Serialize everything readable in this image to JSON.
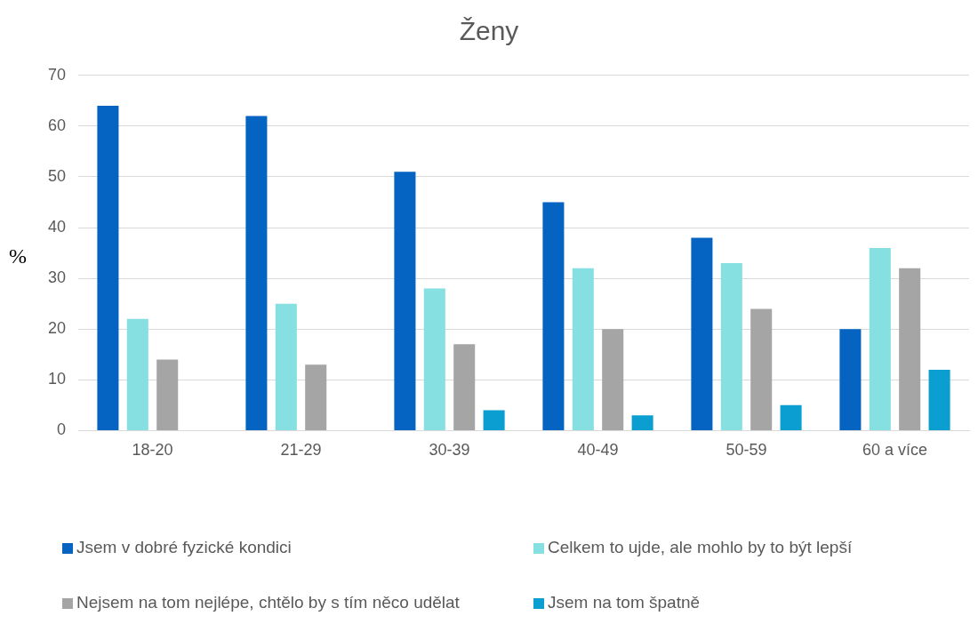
{
  "chart_data": {
    "type": "bar",
    "title": "Ženy",
    "ylabel": "%",
    "categories": [
      "18-20",
      "21-29",
      "30-39",
      "40-49",
      "50-59",
      "60 a více"
    ],
    "series": [
      {
        "name": "Jsem v dobré fyzické kondici",
        "color": "#0563c1",
        "values": [
          64,
          62,
          51,
          45,
          38,
          20
        ]
      },
      {
        "name": "Celkem to ujde, ale mohlo by to být lepší",
        "color": "#86dfe0",
        "values": [
          22,
          25,
          28,
          32,
          33,
          36
        ]
      },
      {
        "name": "Nejsem na tom nejlépe, chtělo by s tím něco udělat",
        "color": "#a5a5a5",
        "values": [
          14,
          13,
          17,
          20,
          24,
          32
        ]
      },
      {
        "name": "Jsem na tom špatně",
        "color": "#0a9fd0",
        "values": [
          null,
          null,
          4,
          3,
          5,
          12
        ]
      }
    ],
    "ylim": [
      0,
      70
    ],
    "yticks": [
      0,
      10,
      20,
      30,
      40,
      50,
      60,
      70
    ],
    "grid": "y",
    "legend": "bottom"
  }
}
